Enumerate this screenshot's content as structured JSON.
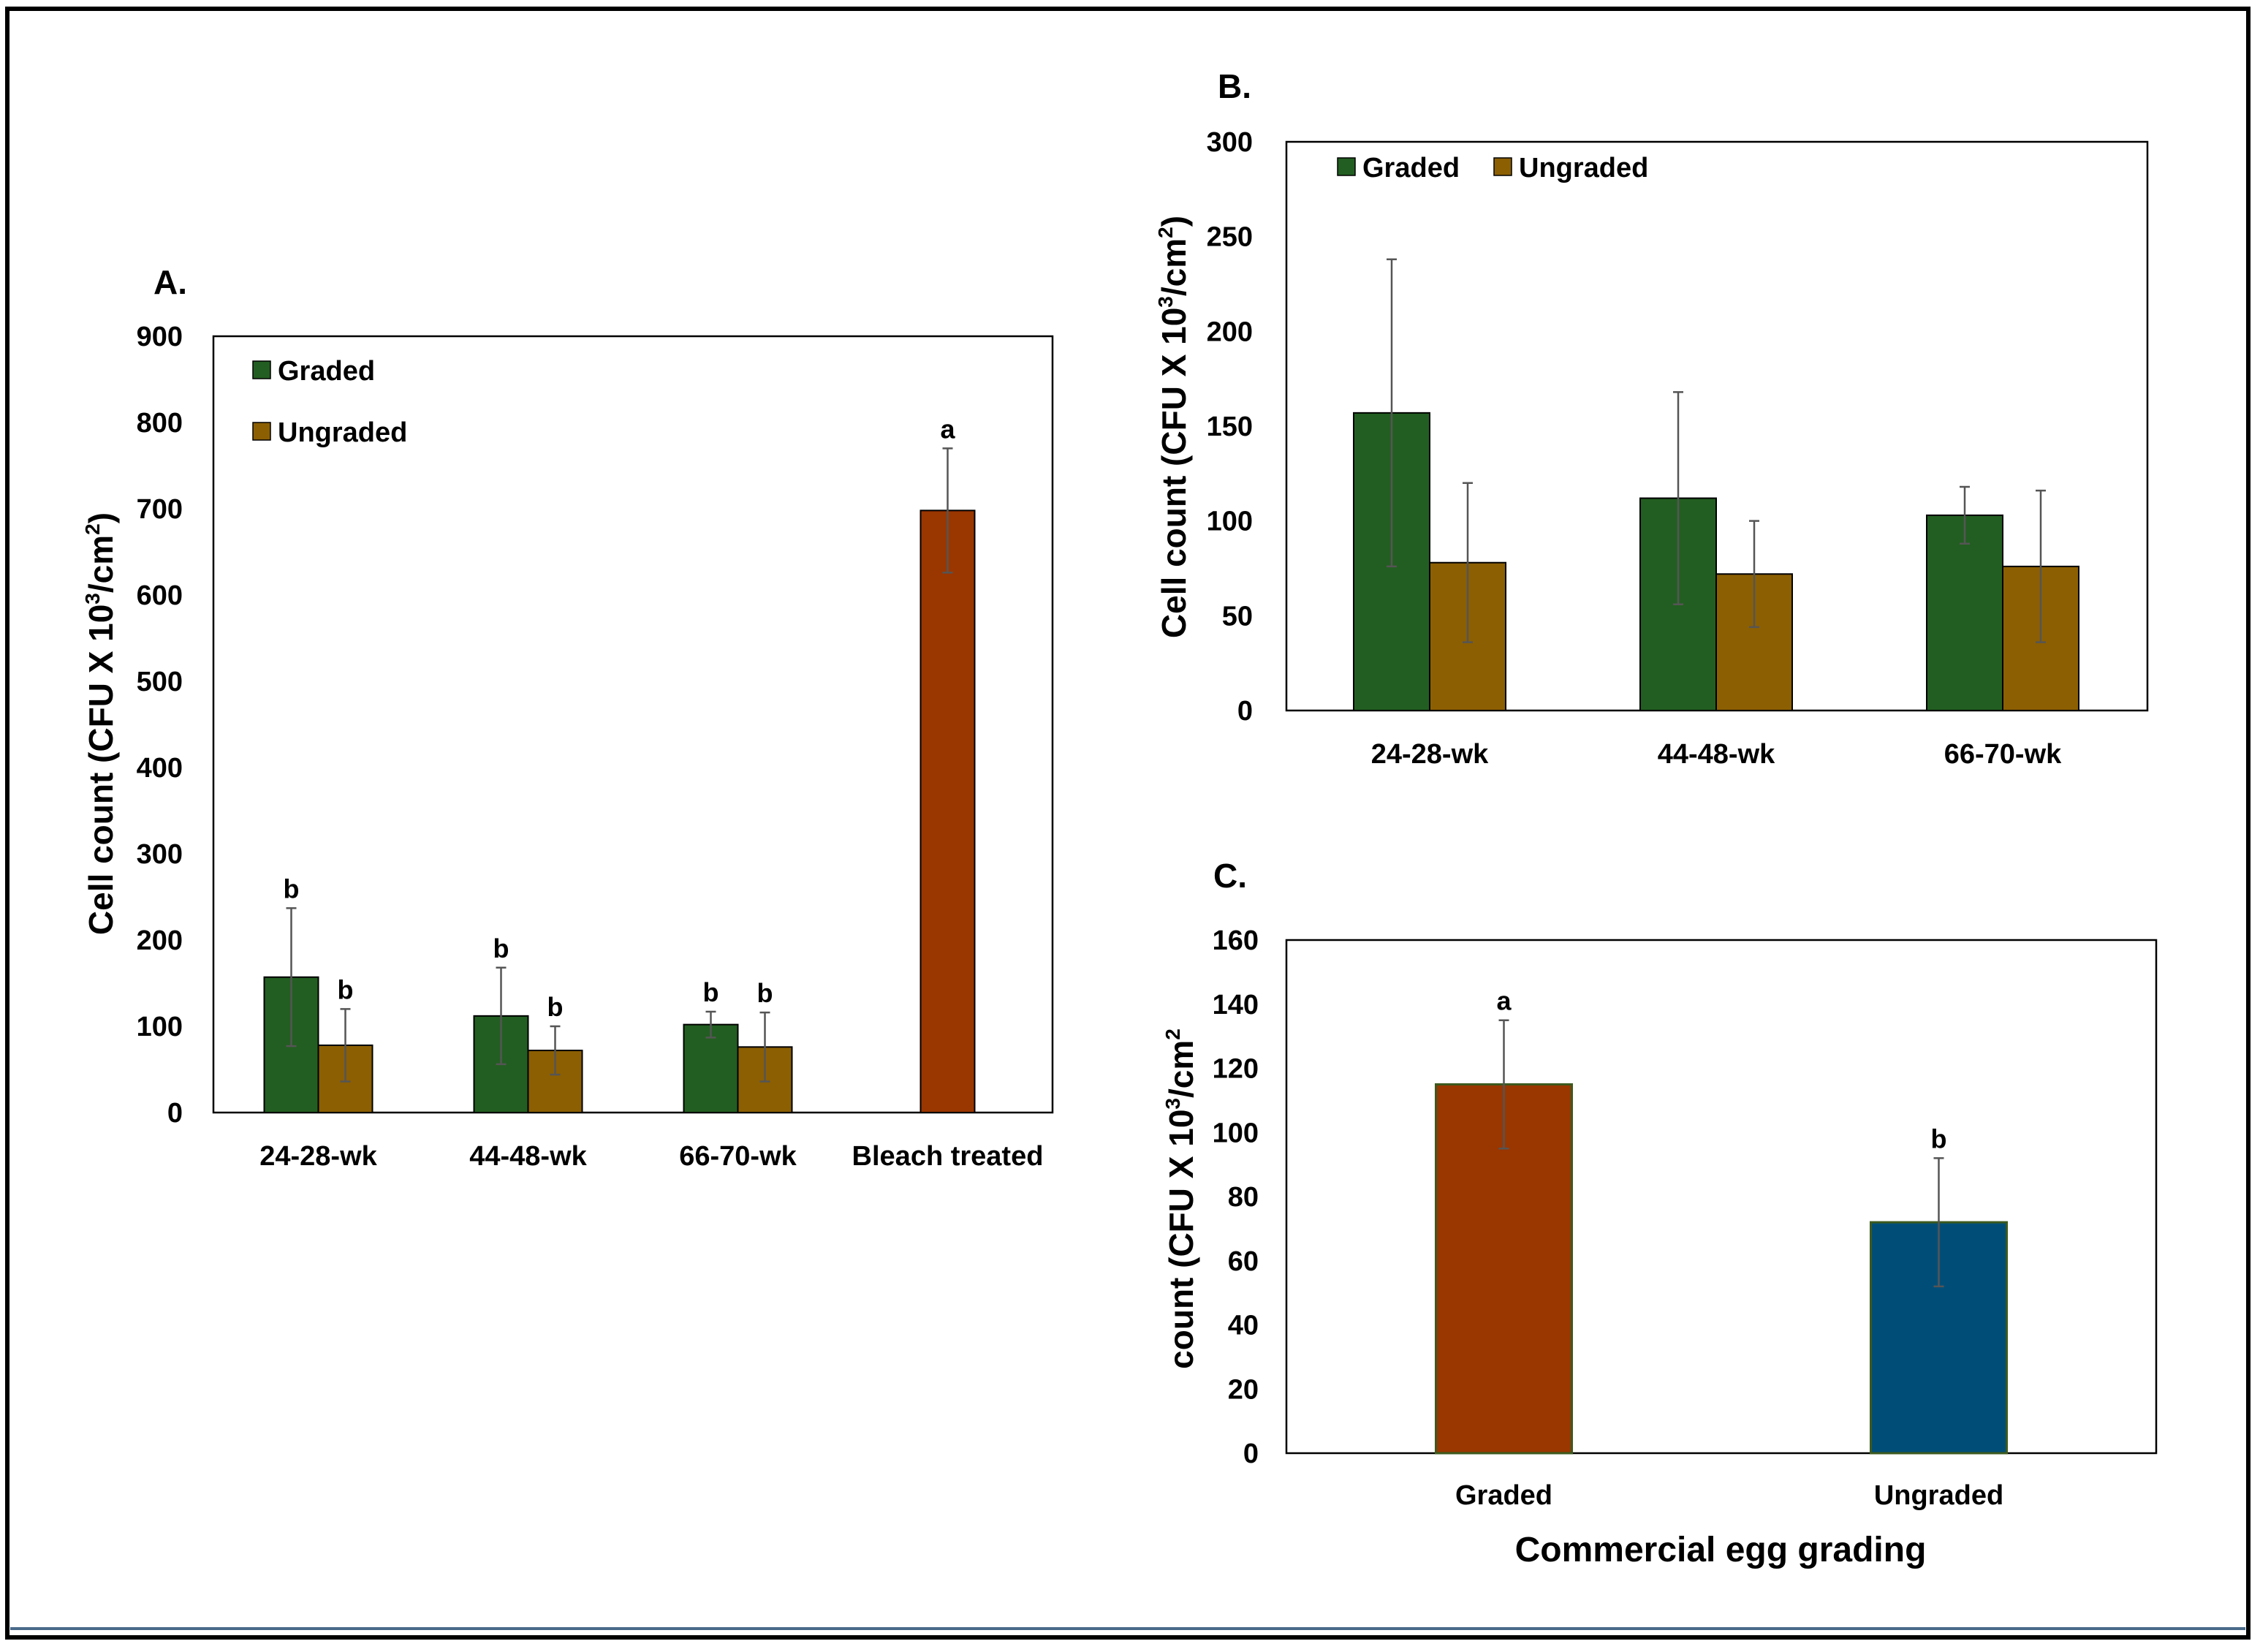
{
  "colors": {
    "graded": "#225e21",
    "ungraded": "#8c5f02",
    "bleach": "#9a3600",
    "graded_c": "#9a3600",
    "ungraded_c": "#004e78"
  },
  "chart_data": [
    {
      "id": "A",
      "type": "bar",
      "panel_label": "A.",
      "title": "",
      "ylabel_prefix": "Cell count (CFU X 10",
      "ylabel_sup": "3",
      "ylabel_mid": "/cm",
      "ylabel_sup2": "2",
      "ylabel_suffix": ")",
      "xlabel": "",
      "ylim": [
        0,
        900
      ],
      "yticks": [
        "0",
        "100",
        "200",
        "300",
        "400",
        "500",
        "600",
        "700",
        "800",
        "900"
      ],
      "categories": [
        "24-28-wk",
        "44-48-wk",
        "66-70-wk",
        "Bleach treated"
      ],
      "legend": [
        "Graded",
        "Ungraded"
      ],
      "series": [
        {
          "name": "Graded",
          "values": [
            157,
            112,
            102,
            null
          ],
          "errors": [
            80,
            56,
            15,
            null
          ],
          "letters": [
            "b",
            "b",
            "b",
            ""
          ]
        },
        {
          "name": "Ungraded",
          "values": [
            78,
            72,
            76,
            null
          ],
          "errors": [
            42,
            28,
            40,
            null
          ],
          "letters": [
            "b",
            "b",
            "b",
            ""
          ]
        },
        {
          "name": "Bleach treated",
          "values": [
            null,
            null,
            null,
            698
          ],
          "errors": [
            null,
            null,
            null,
            72
          ],
          "letters": [
            "",
            "",
            "",
            "a"
          ]
        }
      ]
    },
    {
      "id": "B",
      "type": "bar",
      "panel_label": "B.",
      "title": "",
      "ylabel_prefix": "Cell count (CFU X 10",
      "ylabel_sup": "3",
      "ylabel_mid": "/cm",
      "ylabel_sup2": "2",
      "ylabel_suffix": ")",
      "xlabel": "",
      "ylim": [
        0,
        300
      ],
      "yticks": [
        "0",
        "50",
        "100",
        "150",
        "200",
        "250",
        "300"
      ],
      "categories": [
        "24-28-wk",
        "44-48-wk",
        "66-70-wk"
      ],
      "legend": [
        "Graded",
        "Ungraded"
      ],
      "series": [
        {
          "name": "Graded",
          "values": [
            157,
            112,
            103
          ],
          "errors": [
            81,
            56,
            15
          ]
        },
        {
          "name": "Ungraded",
          "values": [
            78,
            72,
            76
          ],
          "errors": [
            42,
            28,
            40
          ]
        }
      ]
    },
    {
      "id": "C",
      "type": "bar",
      "panel_label": "C.",
      "title": "",
      "ylabel_prefix": "count (CFU X 10",
      "ylabel_sup": "3",
      "ylabel_mid": "/cm",
      "ylabel_sup2": "2",
      "ylabel_suffix": "",
      "xlabel": "Commercial egg grading",
      "ylim": [
        0,
        160
      ],
      "yticks": [
        "0",
        "20",
        "40",
        "60",
        "80",
        "100",
        "120",
        "140",
        "160"
      ],
      "categories": [
        "Graded",
        "Ungraded"
      ],
      "series": [
        {
          "name": "Cell count",
          "values": [
            115,
            72
          ],
          "errors": [
            20,
            20
          ],
          "letters": [
            "a",
            "b"
          ]
        }
      ]
    }
  ]
}
